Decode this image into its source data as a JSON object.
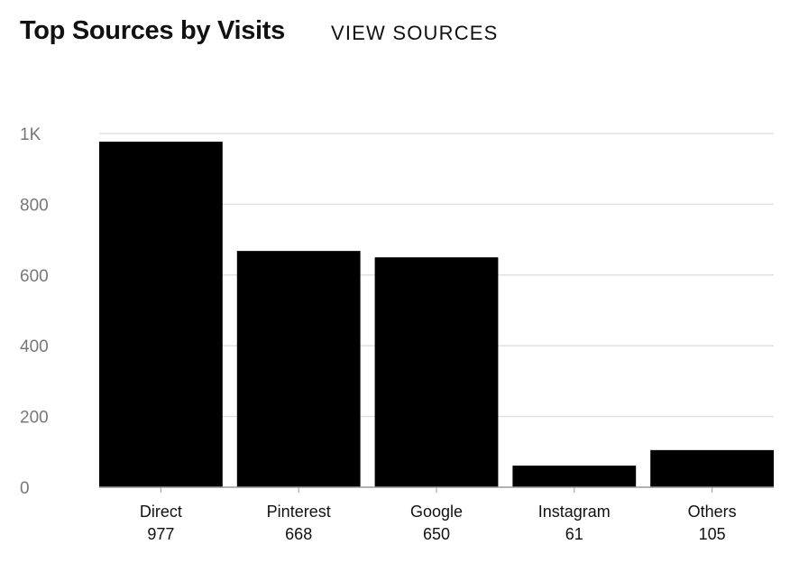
{
  "header": {
    "title": "Top Sources by Visits",
    "link_label": "VIEW SOURCES"
  },
  "chart_data": {
    "type": "bar",
    "categories": [
      "Direct",
      "Pinterest",
      "Google",
      "Instagram",
      "Others"
    ],
    "values": [
      977,
      668,
      650,
      61,
      105
    ],
    "value_labels": [
      "977",
      "668",
      "650",
      "61",
      "105"
    ],
    "ylim": [
      0,
      1000
    ],
    "yticks": [
      0,
      200,
      400,
      600,
      800,
      1000
    ],
    "ytick_labels": [
      "0",
      "200",
      "400",
      "600",
      "800",
      "1K"
    ],
    "grid": true,
    "bar_color": "#000000",
    "grid_color": "#e0e0e0"
  }
}
